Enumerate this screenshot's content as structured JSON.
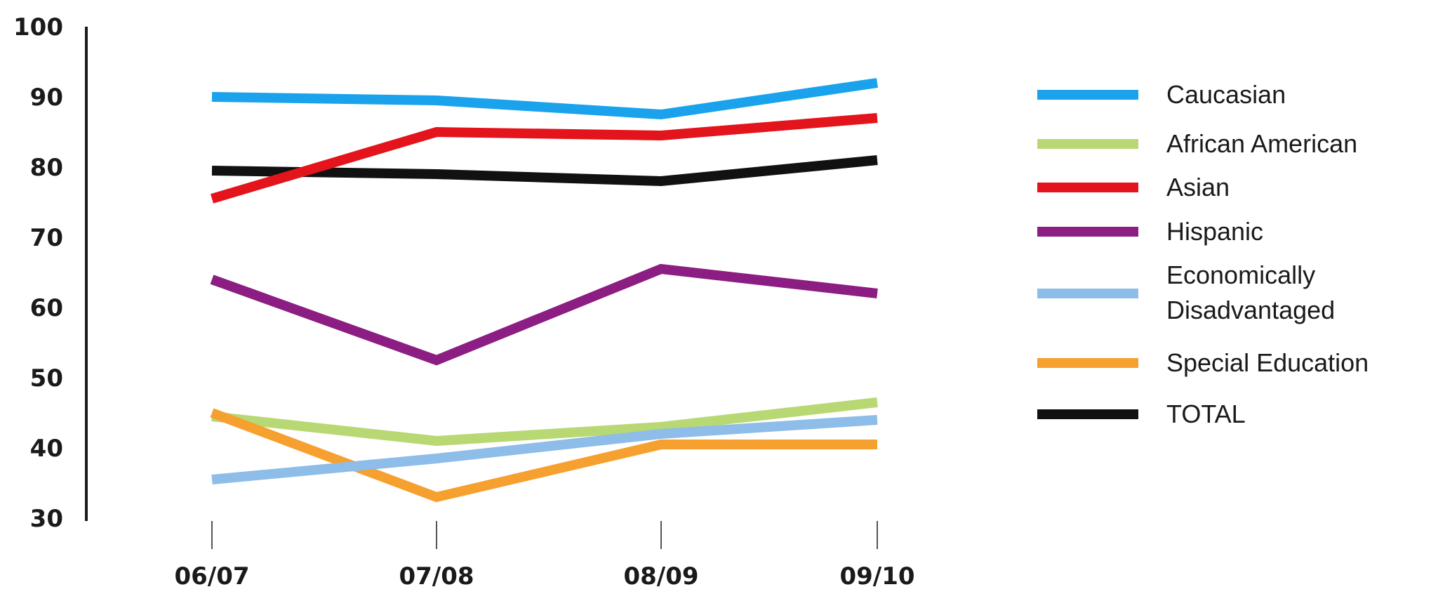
{
  "chart_data": {
    "type": "line",
    "categories": [
      "06/07",
      "07/08",
      "08/09",
      "09/10"
    ],
    "ylim": [
      30,
      100
    ],
    "yticks": [
      30,
      40,
      50,
      60,
      70,
      80,
      90,
      100
    ],
    "grid": false,
    "legend_position": "right",
    "series": [
      {
        "name": "Caucasian",
        "color": "#1aa3ec",
        "values": [
          90,
          89.5,
          87.5,
          92
        ]
      },
      {
        "name": "African American",
        "color": "#b8d873",
        "values": [
          44.5,
          41,
          43,
          46.5
        ]
      },
      {
        "name": "Asian",
        "color": "#e3141b",
        "values": [
          75.5,
          85,
          84.5,
          87
        ]
      },
      {
        "name": "Hispanic",
        "color": "#8c1d82",
        "values": [
          64,
          52.5,
          65.5,
          62
        ]
      },
      {
        "name": "Economically Disadvantaged",
        "legend_lines": [
          "Economically",
          "Disadvantaged"
        ],
        "color": "#8dbde8",
        "values": [
          35.5,
          38.5,
          42,
          44
        ]
      },
      {
        "name": "Special Education",
        "color": "#f6a02f",
        "values": [
          45,
          33,
          40.5,
          40.5
        ]
      },
      {
        "name": "TOTAL",
        "color": "#111111",
        "values": [
          79.5,
          79,
          78,
          81
        ]
      }
    ]
  }
}
